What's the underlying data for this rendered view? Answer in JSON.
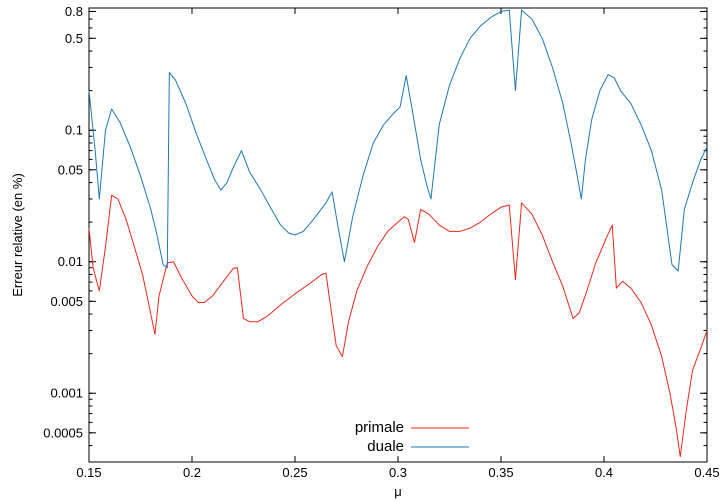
{
  "chart_data": {
    "type": "line",
    "xlabel": "μ",
    "ylabel": "Erreur relative (en %)",
    "xlim": [
      0.15,
      0.45
    ],
    "ylim": [
      0.0003,
      0.85
    ],
    "yscale": "log",
    "grid": false,
    "legend_position": "bottom-center",
    "x_ticks": [
      {
        "value": 0.15,
        "label": "0.15"
      },
      {
        "value": 0.2,
        "label": "0.2"
      },
      {
        "value": 0.25,
        "label": "0.25"
      },
      {
        "value": 0.3,
        "label": "0.3"
      },
      {
        "value": 0.35,
        "label": "0.35"
      },
      {
        "value": 0.4,
        "label": "0.4"
      },
      {
        "value": 0.45,
        "label": "0.45"
      }
    ],
    "y_ticks": [
      {
        "value": 0.0005,
        "label": "0.0005"
      },
      {
        "value": 0.001,
        "label": "0.001"
      },
      {
        "value": 0.005,
        "label": "0.005"
      },
      {
        "value": 0.01,
        "label": "0.01"
      },
      {
        "value": 0.05,
        "label": "0.05"
      },
      {
        "value": 0.1,
        "label": "0.1"
      },
      {
        "value": 0.5,
        "label": "0.5"
      },
      {
        "value": 0.8,
        "label": "0.8"
      }
    ],
    "series": [
      {
        "name": "primale",
        "color": "#e8291c",
        "points": [
          [
            0.15,
            0.018
          ],
          [
            0.152,
            0.009
          ],
          [
            0.155,
            0.006
          ],
          [
            0.158,
            0.013
          ],
          [
            0.161,
            0.032
          ],
          [
            0.164,
            0.03
          ],
          [
            0.168,
            0.021
          ],
          [
            0.172,
            0.013
          ],
          [
            0.176,
            0.008
          ],
          [
            0.18,
            0.004
          ],
          [
            0.182,
            0.0028
          ],
          [
            0.184,
            0.0055
          ],
          [
            0.188,
            0.0098
          ],
          [
            0.191,
            0.01
          ],
          [
            0.195,
            0.0075
          ],
          [
            0.2,
            0.0055
          ],
          [
            0.203,
            0.0049
          ],
          [
            0.206,
            0.0049
          ],
          [
            0.21,
            0.0055
          ],
          [
            0.215,
            0.007
          ],
          [
            0.22,
            0.0089
          ],
          [
            0.222,
            0.009
          ],
          [
            0.225,
            0.0037
          ],
          [
            0.228,
            0.0035
          ],
          [
            0.232,
            0.0035
          ],
          [
            0.237,
            0.0039
          ],
          [
            0.243,
            0.0047
          ],
          [
            0.25,
            0.0057
          ],
          [
            0.257,
            0.0068
          ],
          [
            0.263,
            0.008
          ],
          [
            0.265,
            0.0082
          ],
          [
            0.268,
            0.0038
          ],
          [
            0.27,
            0.0023
          ],
          [
            0.273,
            0.0019
          ],
          [
            0.276,
            0.0035
          ],
          [
            0.28,
            0.006
          ],
          [
            0.285,
            0.0092
          ],
          [
            0.29,
            0.013
          ],
          [
            0.295,
            0.017
          ],
          [
            0.3,
            0.02
          ],
          [
            0.303,
            0.022
          ],
          [
            0.305,
            0.021
          ],
          [
            0.308,
            0.014
          ],
          [
            0.311,
            0.025
          ],
          [
            0.315,
            0.023
          ],
          [
            0.32,
            0.019
          ],
          [
            0.325,
            0.017
          ],
          [
            0.33,
            0.017
          ],
          [
            0.335,
            0.018
          ],
          [
            0.34,
            0.02
          ],
          [
            0.345,
            0.023
          ],
          [
            0.35,
            0.026
          ],
          [
            0.354,
            0.027
          ],
          [
            0.357,
            0.0073
          ],
          [
            0.36,
            0.028
          ],
          [
            0.365,
            0.023
          ],
          [
            0.37,
            0.016
          ],
          [
            0.375,
            0.01
          ],
          [
            0.38,
            0.0065
          ],
          [
            0.385,
            0.0037
          ],
          [
            0.388,
            0.0041
          ],
          [
            0.392,
            0.0062
          ],
          [
            0.396,
            0.0098
          ],
          [
            0.401,
            0.015
          ],
          [
            0.404,
            0.019
          ],
          [
            0.406,
            0.0063
          ],
          [
            0.409,
            0.0071
          ],
          [
            0.413,
            0.0063
          ],
          [
            0.418,
            0.0049
          ],
          [
            0.423,
            0.0033
          ],
          [
            0.428,
            0.0019
          ],
          [
            0.432,
            0.001
          ],
          [
            0.435,
            0.00055
          ],
          [
            0.437,
            0.00033
          ],
          [
            0.44,
            0.00075
          ],
          [
            0.443,
            0.0015
          ],
          [
            0.447,
            0.0022
          ],
          [
            0.45,
            0.003
          ]
        ]
      },
      {
        "name": "duale",
        "color": "#1f77b4",
        "points": [
          [
            0.15,
            0.2
          ],
          [
            0.153,
            0.07
          ],
          [
            0.155,
            0.03
          ],
          [
            0.158,
            0.1
          ],
          [
            0.161,
            0.145
          ],
          [
            0.165,
            0.115
          ],
          [
            0.17,
            0.075
          ],
          [
            0.175,
            0.045
          ],
          [
            0.18,
            0.025
          ],
          [
            0.183,
            0.016
          ],
          [
            0.186,
            0.0095
          ],
          [
            0.188,
            0.009
          ],
          [
            0.189,
            0.275
          ],
          [
            0.192,
            0.24
          ],
          [
            0.197,
            0.16
          ],
          [
            0.202,
            0.095
          ],
          [
            0.207,
            0.06
          ],
          [
            0.211,
            0.042
          ],
          [
            0.214,
            0.035
          ],
          [
            0.217,
            0.04
          ],
          [
            0.22,
            0.052
          ],
          [
            0.224,
            0.07
          ],
          [
            0.228,
            0.048
          ],
          [
            0.233,
            0.036
          ],
          [
            0.238,
            0.026
          ],
          [
            0.243,
            0.019
          ],
          [
            0.247,
            0.0165
          ],
          [
            0.25,
            0.016
          ],
          [
            0.254,
            0.017
          ],
          [
            0.259,
            0.021
          ],
          [
            0.265,
            0.028
          ],
          [
            0.268,
            0.034
          ],
          [
            0.271,
            0.018
          ],
          [
            0.274,
            0.01
          ],
          [
            0.278,
            0.022
          ],
          [
            0.283,
            0.045
          ],
          [
            0.288,
            0.08
          ],
          [
            0.293,
            0.11
          ],
          [
            0.298,
            0.135
          ],
          [
            0.301,
            0.15
          ],
          [
            0.304,
            0.26
          ],
          [
            0.307,
            0.14
          ],
          [
            0.311,
            0.06
          ],
          [
            0.314,
            0.038
          ],
          [
            0.316,
            0.03
          ],
          [
            0.32,
            0.11
          ],
          [
            0.325,
            0.22
          ],
          [
            0.33,
            0.35
          ],
          [
            0.335,
            0.5
          ],
          [
            0.34,
            0.62
          ],
          [
            0.345,
            0.72
          ],
          [
            0.35,
            0.8
          ],
          [
            0.354,
            0.82
          ],
          [
            0.357,
            0.2
          ],
          [
            0.36,
            0.82
          ],
          [
            0.365,
            0.7
          ],
          [
            0.37,
            0.5
          ],
          [
            0.375,
            0.3
          ],
          [
            0.38,
            0.16
          ],
          [
            0.384,
            0.08
          ],
          [
            0.387,
            0.045
          ],
          [
            0.389,
            0.03
          ],
          [
            0.391,
            0.06
          ],
          [
            0.394,
            0.12
          ],
          [
            0.398,
            0.2
          ],
          [
            0.402,
            0.265
          ],
          [
            0.405,
            0.25
          ],
          [
            0.408,
            0.2
          ],
          [
            0.413,
            0.16
          ],
          [
            0.418,
            0.11
          ],
          [
            0.423,
            0.07
          ],
          [
            0.428,
            0.035
          ],
          [
            0.431,
            0.016
          ],
          [
            0.433,
            0.0095
          ],
          [
            0.436,
            0.0085
          ],
          [
            0.439,
            0.025
          ],
          [
            0.443,
            0.04
          ],
          [
            0.447,
            0.06
          ],
          [
            0.45,
            0.075
          ]
        ]
      }
    ]
  }
}
